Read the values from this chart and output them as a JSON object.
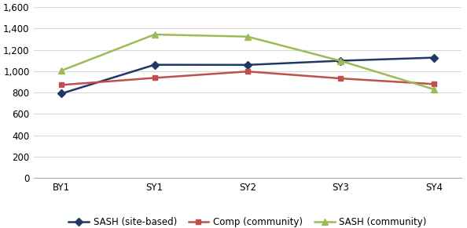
{
  "x_labels": [
    "BY1",
    "SY1",
    "SY2",
    "SY3",
    "SY4"
  ],
  "series": [
    {
      "label": "SASH (site-based)",
      "values": [
        790,
        1060,
        1059,
        1098,
        1127
      ],
      "color": "#1F3864",
      "marker": "D",
      "marker_size": 5,
      "linewidth": 1.8
    },
    {
      "label": "Comp (community)",
      "values": [
        871,
        937,
        997,
        932,
        879
      ],
      "color": "#C0504D",
      "marker": "s",
      "marker_size": 5,
      "linewidth": 1.8
    },
    {
      "label": "SASH (community)",
      "values": [
        1005,
        1344,
        1324,
        1096,
        830
      ],
      "color": "#9BBB59",
      "marker": "^",
      "marker_size": 6,
      "linewidth": 1.8
    }
  ],
  "ylim": [
    0,
    1600
  ],
  "yticks": [
    0,
    200,
    400,
    600,
    800,
    1000,
    1200,
    1400,
    1600
  ],
  "ytick_labels": [
    "0",
    "200",
    "400",
    "600",
    "800",
    "1,000",
    "1,200",
    "1,400",
    "1,600"
  ],
  "background_color": "#FFFFFF",
  "plot_bg_color": "#FFFFFF",
  "grid_color": "#D9D9D9",
  "legend_fontsize": 8.5,
  "tick_fontsize": 8.5,
  "figsize": [
    5.94,
    2.91
  ],
  "dpi": 100
}
